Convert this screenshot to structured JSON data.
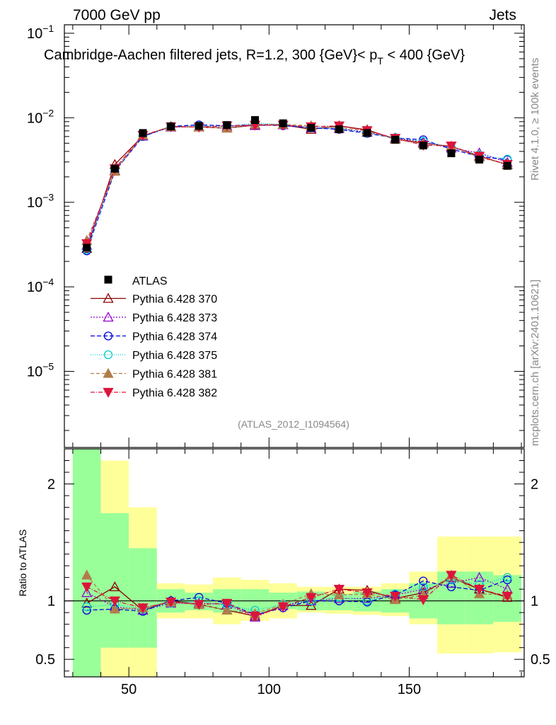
{
  "header": {
    "left": "7000 GeV pp",
    "right": "Jets",
    "side_top": "Rivet 4.1.0, ≥ 100k events",
    "side_bottom": "mcplots.cern.ch [arXiv:2401.10621]",
    "ratio_ylabel": "Ratio to ATLAS"
  },
  "chart_data": {
    "type": "line",
    "title": "Cambridge-Aachen filtered jets, R=1.2, 300 {GeV}< p_T < 400 {GeV}",
    "title_parts": {
      "main": "Cambridge-Aachen filtered jets, R=1.2, 300 {GeV}< p",
      "sub": "T",
      "tail": " < 400 {GeV}"
    },
    "analysis_tag": "(ATLAS_2012_I1094564)",
    "xlabel": "",
    "ylabel": "",
    "xlim": [
      27,
      191
    ],
    "ylim_log": [
      -5.9,
      -0.9
    ],
    "ratio_ylim": [
      0.35,
      2.3
    ],
    "x": [
      35,
      45,
      55,
      65,
      75,
      85,
      95,
      105,
      115,
      125,
      135,
      145,
      155,
      165,
      175,
      185
    ],
    "x_ticks": [
      50,
      100,
      150
    ],
    "y_tick_labels": [
      "10^-5",
      "10^-4",
      "10^-3",
      "10^-2",
      "10^-1"
    ],
    "ratio_ticks": [
      0.5,
      1,
      2
    ],
    "reference": {
      "name": "ATLAS",
      "values": [
        0.00029,
        0.0025,
        0.0066,
        0.0079,
        0.008,
        0.0082,
        0.0094,
        0.0086,
        0.0076,
        0.0073,
        0.0066,
        0.0055,
        0.0047,
        0.0038,
        0.0032,
        0.0027
      ]
    },
    "band_inner": [
      [
        0.35,
        2.3
      ],
      [
        0.6,
        1.75
      ],
      [
        0.6,
        1.45
      ],
      [
        0.9,
        1.1
      ],
      [
        0.92,
        1.07
      ],
      [
        0.9,
        1.1
      ],
      [
        0.9,
        1.1
      ],
      [
        0.93,
        1.07
      ],
      [
        0.92,
        1.08
      ],
      [
        0.92,
        1.06
      ],
      [
        0.91,
        1.08
      ],
      [
        0.9,
        1.1
      ],
      [
        0.85,
        1.15
      ],
      [
        0.8,
        1.25
      ],
      [
        0.8,
        1.25
      ],
      [
        0.82,
        1.22
      ]
    ],
    "band_outer": [
      [
        0.35,
        2.3
      ],
      [
        0.35,
        2.2
      ],
      [
        0.35,
        1.8
      ],
      [
        0.85,
        1.15
      ],
      [
        0.85,
        1.14
      ],
      [
        0.8,
        1.2
      ],
      [
        0.83,
        1.18
      ],
      [
        0.85,
        1.15
      ],
      [
        0.9,
        1.12
      ],
      [
        0.89,
        1.12
      ],
      [
        0.88,
        1.12
      ],
      [
        0.87,
        1.15
      ],
      [
        0.8,
        1.25
      ],
      [
        0.55,
        1.55
      ],
      [
        0.55,
        1.55
      ],
      [
        0.56,
        1.55
      ]
    ],
    "series": [
      {
        "name": "Pythia 6.428 370",
        "color": "#8b0000",
        "dash": "",
        "marker": "triangle-open",
        "ratio": [
          0.98,
          1.12,
          0.92,
          1.0,
          0.97,
          0.92,
          0.87,
          0.96,
          0.96,
          1.1,
          1.09,
          1.02,
          1.07,
          1.2,
          1.1,
          1.03
        ]
      },
      {
        "name": "Pythia 6.428 373",
        "color": "#9400d3",
        "dash": "2,2",
        "marker": "triangle-open",
        "ratio": [
          1.07,
          0.95,
          0.92,
          0.98,
          0.98,
          0.97,
          0.86,
          0.96,
          1.0,
          1.02,
          1.02,
          1.05,
          1.1,
          1.15,
          1.2,
          1.1
        ]
      },
      {
        "name": "Pythia 6.428 374",
        "color": "#0000dd",
        "dash": "6,3",
        "marker": "circle-open",
        "ratio": [
          0.92,
          0.93,
          0.91,
          1.0,
          1.03,
          0.98,
          0.88,
          0.94,
          1.0,
          1.0,
          0.99,
          1.05,
          1.17,
          1.12,
          1.09,
          1.18
        ]
      },
      {
        "name": "Pythia 6.428 375",
        "color": "#00cccc",
        "dash": "1,2",
        "marker": "circle-open",
        "ratio": [
          0.95,
          0.97,
          0.93,
          0.98,
          1.0,
          0.96,
          0.92,
          0.97,
          1.0,
          1.03,
          1.0,
          1.06,
          1.12,
          1.18,
          1.14,
          1.2
        ]
      },
      {
        "name": "Pythia 6.428 381",
        "color": "#b07d4a",
        "dash": "5,3",
        "marker": "triangle-solid",
        "ratio": [
          1.22,
          0.93,
          0.94,
          0.99,
          0.97,
          0.92,
          0.89,
          0.97,
          1.06,
          1.05,
          1.06,
          1.01,
          1.05,
          1.22,
          1.06,
          1.05
        ]
      },
      {
        "name": "Pythia 6.428 382",
        "color": "#dc143c",
        "dash": "6,2,1,2",
        "marker": "triangle-down-solid",
        "ratio": [
          1.12,
          1.0,
          0.94,
          0.99,
          0.97,
          0.98,
          0.87,
          0.95,
          1.03,
          1.1,
          1.07,
          1.04,
          1.01,
          1.22,
          1.1,
          1.04
        ]
      }
    ]
  }
}
